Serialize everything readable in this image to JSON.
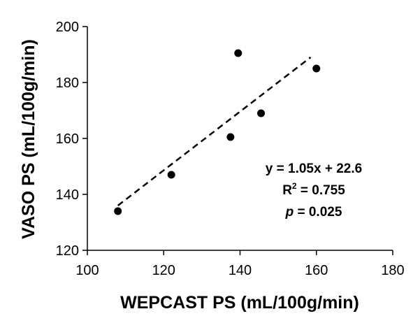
{
  "chart_data": {
    "type": "scatter",
    "title": "",
    "xlabel": "WEPCAST PS (mL/100g/min)",
    "ylabel": "VASO PS (mL/100g/min)",
    "xlim": [
      100,
      180
    ],
    "ylim": [
      120,
      200
    ],
    "x_ticks": [
      100,
      120,
      140,
      160,
      180
    ],
    "y_ticks": [
      120,
      140,
      160,
      180,
      200
    ],
    "grid": false,
    "legend": "none",
    "series": [
      {
        "points": [
          {
            "x": 108,
            "y": 134
          },
          {
            "x": 122,
            "y": 147
          },
          {
            "x": 137.5,
            "y": 160.5
          },
          {
            "x": 139.5,
            "y": 190.5
          },
          {
            "x": 145.5,
            "y": 169
          },
          {
            "x": 160,
            "y": 185
          }
        ],
        "marker_color": "#000000"
      }
    ],
    "trendline": {
      "style": "dashed",
      "color": "#000000",
      "slope": 1.05,
      "intercept": 22.6,
      "x_start": 108,
      "x_end": 158.5
    },
    "annotations": {
      "equation": "y = 1.05x + 22.6",
      "r_squared_prefix": "R",
      "r_squared_sup": "2",
      "r_squared_suffix": " = 0.755",
      "p_symbol": "p",
      "p_suffix": " = 0.025"
    }
  }
}
